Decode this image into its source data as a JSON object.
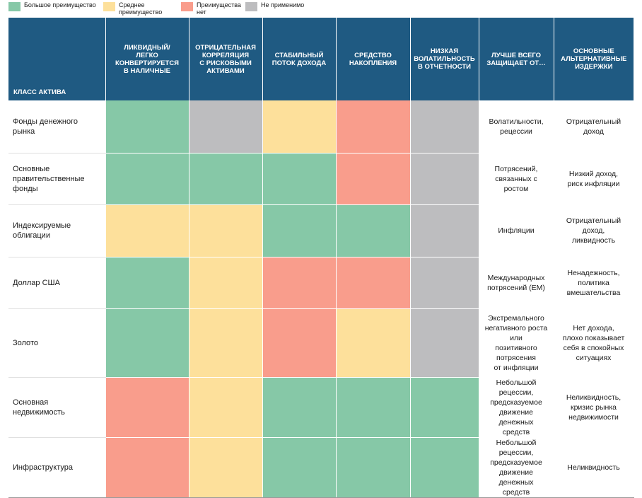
{
  "colors": {
    "strong": "#86c8a7",
    "medium": "#fde09b",
    "none": "#f99d8c",
    "na": "#bdbdbf",
    "header": "#1f5a82"
  },
  "legend": [
    {
      "key": "strong",
      "label": "Большое преимущество"
    },
    {
      "key": "medium",
      "label": "Среднее\nпреимущество"
    },
    {
      "key": "none",
      "label": "Преимущества\nнет"
    },
    {
      "key": "na",
      "label": "Не применимо"
    }
  ],
  "header": {
    "asset_class": "КЛАСС АКТИВА",
    "columns": [
      "ЛИКВИДНЫЙ/\nЛЕГКО КОНВЕРТИРУЕТСЯ\nВ НАЛИЧНЫЕ",
      "ОТРИЦАТЕЛЬНАЯ\nКОРРЕЛЯЦИЯ\nС РИСКОВЫМИ\nАКТИВАМИ",
      "СТАБИЛЬНЫЙ\nПОТОК ДОХОДА",
      "СРЕДСТВО\nНАКОПЛЕНИЯ",
      "НИЗКАЯ\nВОЛАТИЛЬНОСТЬ\nВ ОТЧЕТНОСТИ"
    ],
    "protects": "ЛУЧШЕ ВСЕГО\nЗАЩИЩАЕТ ОТ…",
    "costs": "ОСНОВНЫЕ\nАЛЬТЕРНАТИВНЫЕ\nИЗДЕРЖКИ"
  },
  "chart_data": {
    "type": "table",
    "title": "",
    "rows": [
      {
        "asset": "Фонды денежного рынка",
        "ratings": [
          "strong",
          "na",
          "medium",
          "none",
          "na"
        ],
        "protects": "Волатильности,\nрецессии",
        "costs": "Отрицательный\nдоход"
      },
      {
        "asset": "Основные\nправительственные\nфонды",
        "ratings": [
          "strong",
          "strong",
          "strong",
          "none",
          "na"
        ],
        "protects": "Потрясений,\nсвязанных с ростом",
        "costs": "Низкий доход,\nриск инфляции"
      },
      {
        "asset": "Индексируемые\nоблигации",
        "ratings": [
          "medium",
          "medium",
          "strong",
          "strong",
          "na"
        ],
        "protects": "Инфляции",
        "costs": "Отрицательный\nдоход,\nликвидность"
      },
      {
        "asset": "Доллар США",
        "ratings": [
          "strong",
          "medium",
          "none",
          "none",
          "na"
        ],
        "protects": "Международных\nпотрясений (EM)",
        "costs": "Ненадежность,\nполитика\nвмешательства"
      },
      {
        "asset": "Золото",
        "ratings": [
          "strong",
          "medium",
          "none",
          "medium",
          "na"
        ],
        "protects": "Экстремального\nнегативного роста\nили\nпозитивного\nпотрясения\nот инфляции",
        "costs": "Нет дохода,\nплохо показывает\nсебя в спокойных\nситуациях"
      },
      {
        "asset": "Основная недвижимость",
        "ratings": [
          "none",
          "medium",
          "strong",
          "strong",
          "strong"
        ],
        "protects": "Небольшой\nрецессии,\nпредсказуемое\nдвижение денежных\nсредств",
        "costs": "Неликвидность,\nкризис рынка\nнедвижимости"
      },
      {
        "asset": "Инфраструктура",
        "ratings": [
          "none",
          "medium",
          "strong",
          "strong",
          "strong"
        ],
        "protects": "Небольшой\nрецессии,\nпредсказуемое\nдвижение денежных\nсредств",
        "costs": "Неликвидность"
      }
    ]
  }
}
